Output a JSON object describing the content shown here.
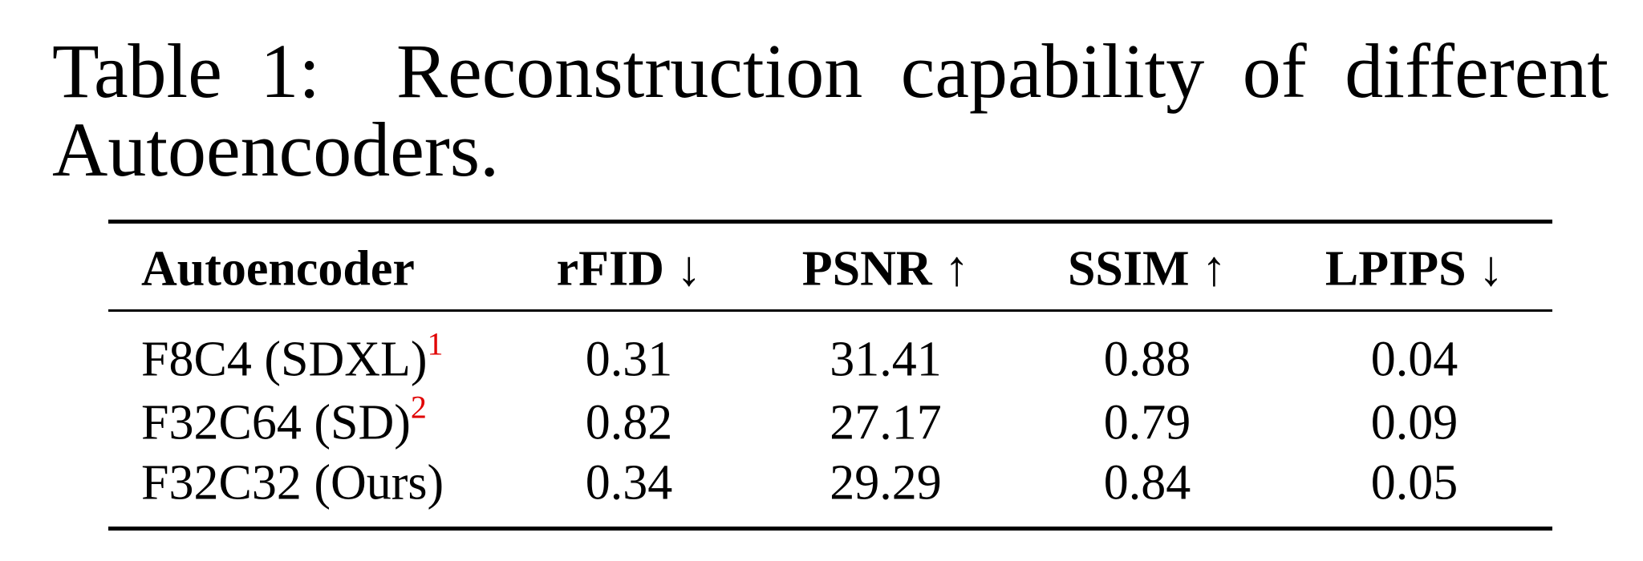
{
  "caption": {
    "label": "Table 1:",
    "text": "Reconstruction capability of different Autoencoders."
  },
  "table": {
    "header": [
      "Autoencoder",
      "rFID ↓",
      "PSNR ↑",
      "SSIM ↑",
      "LPIPS ↓"
    ],
    "rows": [
      {
        "autoencoder": "F8C4 (SDXL)",
        "footnote": "1",
        "cells": [
          "0.31",
          "31.41",
          "0.88",
          "0.04"
        ]
      },
      {
        "autoencoder": "F32C64 (SD)",
        "footnote": "2",
        "cells": [
          "0.82",
          "27.17",
          "0.79",
          "0.09"
        ]
      },
      {
        "autoencoder": "F32C32 (Ours)",
        "cells": [
          "0.34",
          "29.29",
          "0.84",
          "0.05"
        ]
      }
    ]
  }
}
